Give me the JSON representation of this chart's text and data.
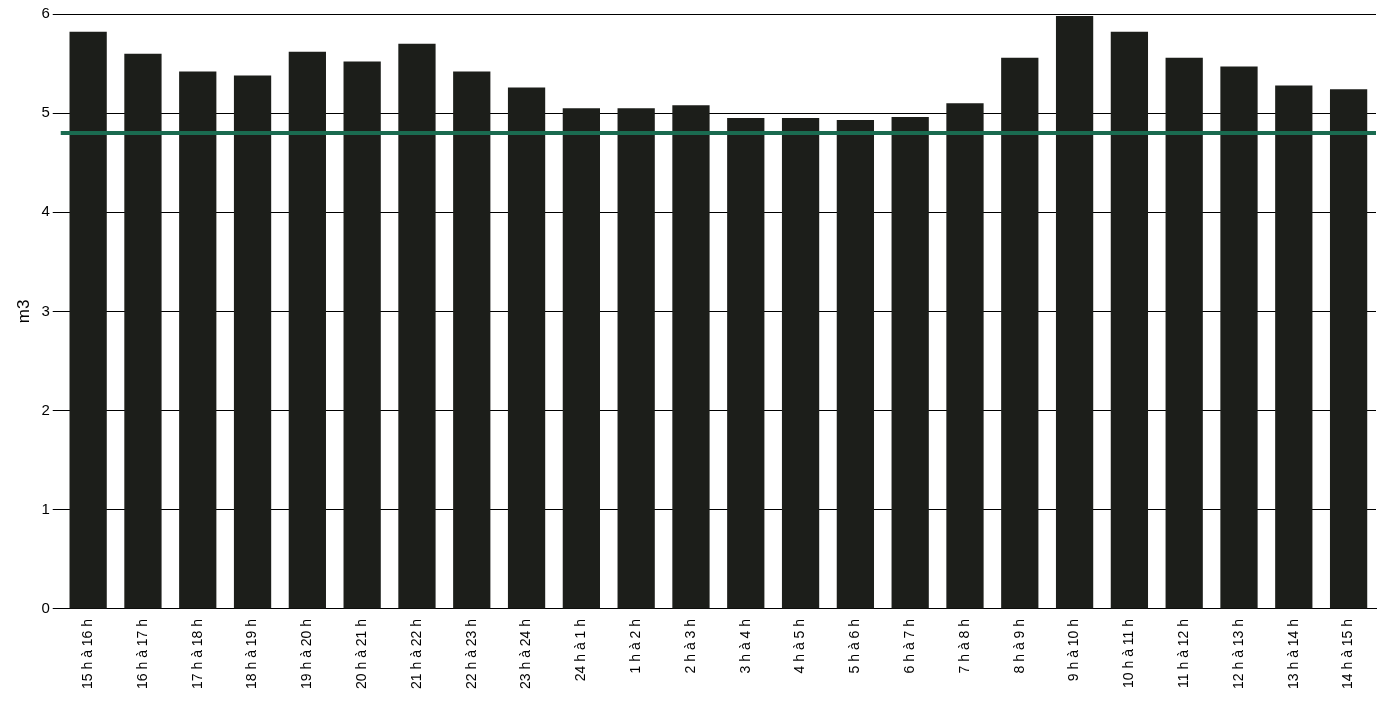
{
  "chart_data": {
    "type": "bar",
    "ylabel": "m3",
    "categories": [
      "15 h à 16 h",
      "16 h à 17 h",
      "17 h à 18 h",
      "18 h à 19 h",
      "19 h à 20 h",
      "20 h à 21 h",
      "21 h à 22 h",
      "22 h à 23 h",
      "23 h à 24 h",
      "24 h à 1 h",
      "1 h à 2 h",
      "2 h à 3 h",
      "3 h à 4 h",
      "4 h à 5 h",
      "5 h à 6 h",
      "6 h à 7 h",
      "7 h à 8 h",
      "8 h à 9 h",
      "9 h à 10 h",
      "10 h à 11 h",
      "11 h à 12 h",
      "12 h à 13 h",
      "13 h à 14 h",
      "14 h à 15 h"
    ],
    "values": [
      5.82,
      5.6,
      5.42,
      5.38,
      5.62,
      5.52,
      5.7,
      5.42,
      5.26,
      5.05,
      5.05,
      5.08,
      4.95,
      4.95,
      4.93,
      4.96,
      5.1,
      5.56,
      5.98,
      5.82,
      5.56,
      5.47,
      5.28,
      5.24
    ],
    "color": "#1c1e1a",
    "ylim": [
      0,
      6
    ],
    "yticks": [
      0,
      1,
      2,
      3,
      4,
      5,
      6
    ],
    "grid": "y",
    "ref_lines": [
      {
        "axis": "y",
        "value": 4.8,
        "color": "#1a6b50"
      }
    ]
  }
}
